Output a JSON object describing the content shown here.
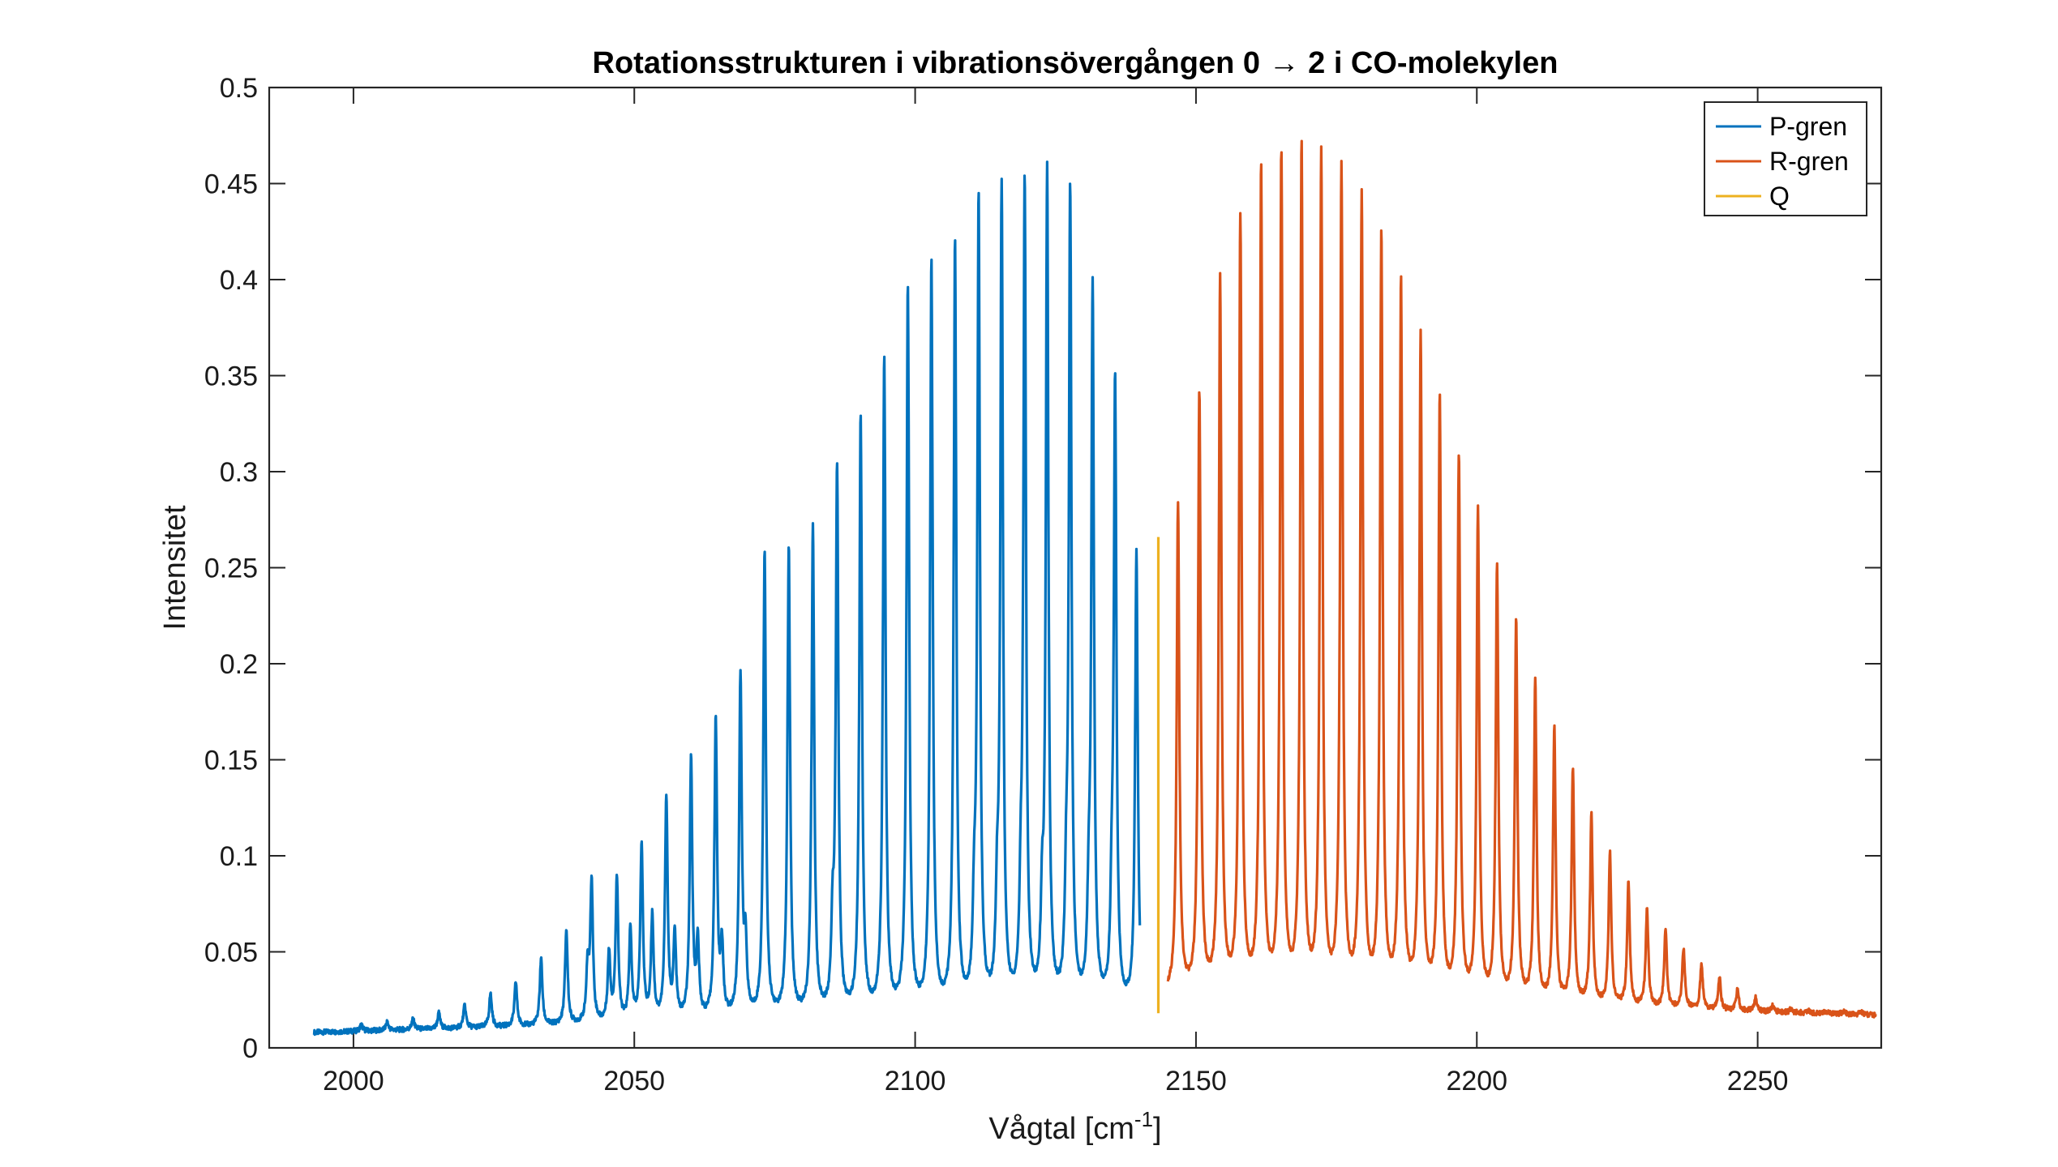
{
  "chart_data": {
    "type": "line",
    "title": "Rotationsstrukturen i vibrationsövergången 0 → 2 i CO-molekylen",
    "xlabel": "Vågtal [cm",
    "xlabel_sup": "-1",
    "xlabel_end": "]",
    "ylabel": "Intensitet",
    "xlim": [
      1985,
      2272
    ],
    "ylim": [
      0,
      0.5
    ],
    "xticks": [
      2000,
      2050,
      2100,
      2150,
      2200,
      2250
    ],
    "xtick_labels": [
      "2000",
      "2050",
      "2100",
      "2150",
      "2200",
      "2250"
    ],
    "yticks": [
      0,
      0.05,
      0.1,
      0.15,
      0.2,
      0.25,
      0.3,
      0.35,
      0.4,
      0.45,
      0.5
    ],
    "ytick_labels": [
      "0",
      "0.05",
      "0.1",
      "0.15",
      "0.2",
      "0.25",
      "0.3",
      "0.35",
      "0.4",
      "0.45",
      "0.5"
    ],
    "legend_position": "top-right",
    "series": [
      {
        "name": "P-gren",
        "color": "#0072BD",
        "x_range": [
          1993,
          2140
        ],
        "peaks": [
          [
            2139.4,
            0.257
          ],
          [
            2135.6,
            0.341
          ],
          [
            2131.6,
            0.391
          ],
          [
            2127.6,
            0.44
          ],
          [
            2123.5,
            0.45
          ],
          [
            2119.5,
            0.445
          ],
          [
            2115.4,
            0.442
          ],
          [
            2111.3,
            0.436
          ],
          [
            2107.1,
            0.416
          ],
          [
            2102.9,
            0.406
          ],
          [
            2098.7,
            0.394
          ],
          [
            2094.5,
            0.357
          ],
          [
            2090.3,
            0.327
          ],
          [
            2086.1,
            0.298
          ],
          [
            2081.8,
            0.269
          ],
          [
            2077.5,
            0.259
          ],
          [
            2073.2,
            0.256
          ],
          [
            2068.9,
            0.191
          ],
          [
            2064.5,
            0.169
          ],
          [
            2060.1,
            0.149
          ],
          [
            2055.7,
            0.129
          ],
          [
            2051.3,
            0.105
          ],
          [
            2046.9,
            0.088
          ],
          [
            2042.4,
            0.085
          ],
          [
            2037.9,
            0.061
          ],
          [
            2033.4,
            0.046
          ],
          [
            2028.9,
            0.034
          ],
          [
            2024.4,
            0.028
          ],
          [
            2019.8,
            0.022
          ],
          [
            2015.2,
            0.018
          ],
          [
            2010.6,
            0.015
          ],
          [
            2006.0,
            0.013
          ],
          [
            2001.4,
            0.012
          ],
          [
            2135.0,
            0.06
          ],
          [
            2130.9,
            0.058
          ],
          [
            2126.9,
            0.062
          ],
          [
            2122.6,
            0.06
          ],
          [
            2118.8,
            0.058
          ],
          [
            2114.6,
            0.061
          ],
          [
            2110.5,
            0.057
          ],
          [
            2085.3,
            0.055
          ],
          [
            2069.8,
            0.05
          ],
          [
            2065.6,
            0.05
          ],
          [
            2061.3,
            0.052
          ],
          [
            2057.2,
            0.057
          ],
          [
            2053.2,
            0.067
          ],
          [
            2049.3,
            0.06
          ],
          [
            2045.5,
            0.048
          ],
          [
            2041.7,
            0.04
          ]
        ],
        "baseline_start": 0.008,
        "baseline_end": 0.02
      },
      {
        "name": "R-gren",
        "color": "#D95319",
        "x_range": [
          2145,
          2271
        ],
        "peaks": [
          [
            2146.8,
            0.28
          ],
          [
            2150.6,
            0.338
          ],
          [
            2154.3,
            0.397
          ],
          [
            2157.9,
            0.429
          ],
          [
            2161.6,
            0.455
          ],
          [
            2165.2,
            0.462
          ],
          [
            2168.8,
            0.467
          ],
          [
            2172.3,
            0.462
          ],
          [
            2175.9,
            0.455
          ],
          [
            2179.5,
            0.44
          ],
          [
            2183.0,
            0.42
          ],
          [
            2186.5,
            0.396
          ],
          [
            2190.0,
            0.366
          ],
          [
            2193.4,
            0.335
          ],
          [
            2196.8,
            0.305
          ],
          [
            2200.2,
            0.276
          ],
          [
            2203.6,
            0.248
          ],
          [
            2207.0,
            0.22
          ],
          [
            2210.4,
            0.19
          ],
          [
            2213.8,
            0.165
          ],
          [
            2217.1,
            0.143
          ],
          [
            2220.4,
            0.12
          ],
          [
            2223.7,
            0.1
          ],
          [
            2227.0,
            0.085
          ],
          [
            2230.3,
            0.071
          ],
          [
            2233.6,
            0.061
          ],
          [
            2236.8,
            0.051
          ],
          [
            2240.0,
            0.043
          ],
          [
            2243.2,
            0.036
          ],
          [
            2246.4,
            0.03
          ],
          [
            2249.6,
            0.026
          ],
          [
            2252.7,
            0.022
          ],
          [
            2255.9,
            0.02
          ],
          [
            2259.1,
            0.019
          ],
          [
            2262.2,
            0.019
          ],
          [
            2265.3,
            0.019
          ],
          [
            2268.4,
            0.019
          ]
        ],
        "baseline_start": 0.028,
        "baseline_end": 0.017
      },
      {
        "name": "Q",
        "color": "#EDB120",
        "segment": {
          "x": 2143.3,
          "y": [
            0.018,
            0.266
          ]
        }
      }
    ]
  }
}
